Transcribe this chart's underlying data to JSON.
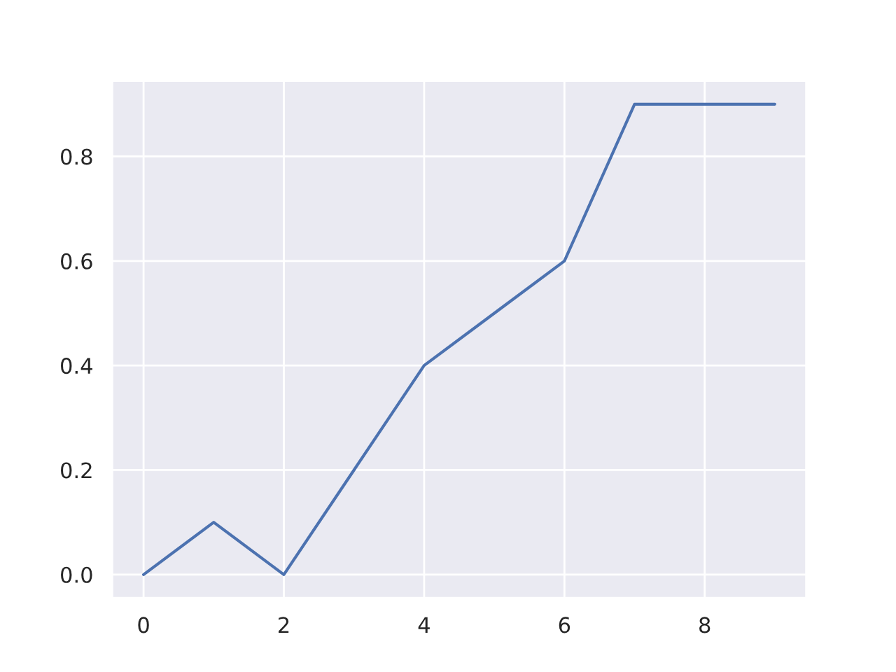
{
  "chart_data": {
    "type": "line",
    "x": [
      0,
      1,
      2,
      3,
      4,
      5,
      6,
      7,
      8,
      9
    ],
    "series": [
      {
        "color": "#4c72b0",
        "values": [
          0,
          0.1,
          0,
          0.2,
          0.4,
          0.5,
          0.6,
          0.9,
          0.9,
          0.9
        ]
      }
    ],
    "xlim": [
      -0.45,
      9.45
    ],
    "xticks": [
      0,
      2,
      4,
      6,
      8
    ],
    "ylim": [
      -0.045,
      0.945
    ],
    "yticks": [
      {
        "value": 0,
        "label": "0.0"
      },
      {
        "value": 0.2,
        "label": "0.2"
      },
      {
        "value": 0.4,
        "label": "0.4"
      },
      {
        "value": 0.6,
        "label": "0.6"
      },
      {
        "value": 0.8,
        "label": "0.8"
      }
    ],
    "grid": true,
    "line_style": "solid",
    "marker": "none",
    "legend": false
  }
}
